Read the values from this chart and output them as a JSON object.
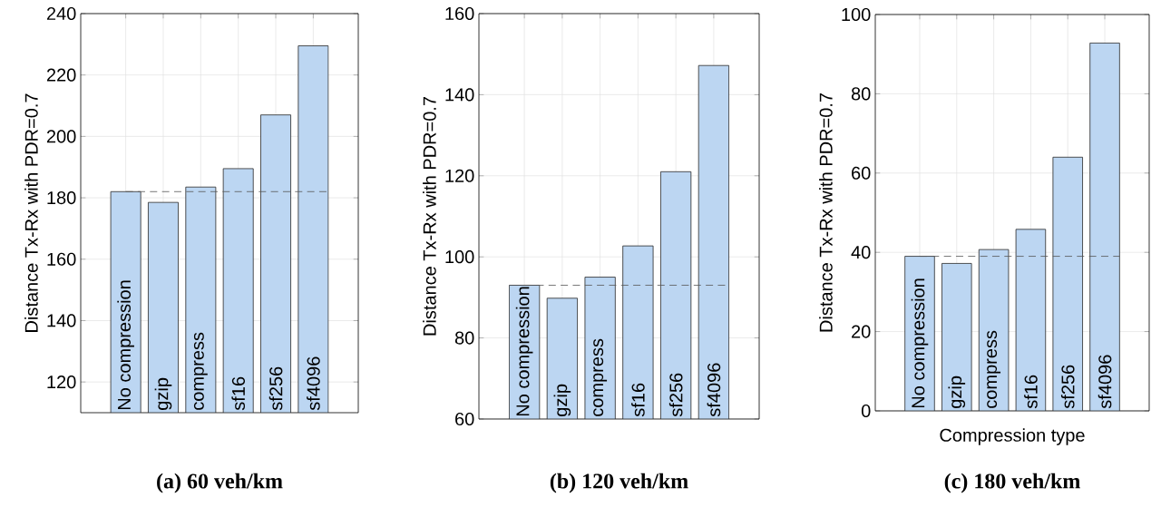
{
  "chart_data": [
    {
      "type": "bar",
      "title": "(a) 60 veh/km",
      "ylabel": "Distance Tx-Rx with PDR=0.7",
      "categories": [
        "No compression",
        "gzip",
        "compress",
        "sf16",
        "sf256",
        "sf4096"
      ],
      "values": [
        182,
        178.5,
        183.5,
        189.5,
        207,
        229.5
      ],
      "color": "#bcd6f2",
      "ylim": [
        110,
        240
      ],
      "yticks": [
        120,
        140,
        160,
        180,
        200,
        220,
        240
      ],
      "grid": true,
      "tick_labels": "y",
      "ref_lines": [
        {
          "axis": "y",
          "value": 182,
          "color": "#555555",
          "line_style": "dashed"
        }
      ]
    },
    {
      "type": "bar",
      "title": "(b) 120 veh/km",
      "ylabel": "Distance Tx-Rx with PDR=0.7",
      "categories": [
        "No compression",
        "gzip",
        "compress",
        "sf16",
        "sf256",
        "sf4096"
      ],
      "values": [
        93,
        89.8,
        95,
        102.7,
        121,
        147.2
      ],
      "color": "#bcd6f2",
      "ylim": [
        60,
        160
      ],
      "yticks": [
        60,
        80,
        100,
        120,
        140,
        160
      ],
      "grid": true,
      "tick_labels": "y",
      "ref_lines": [
        {
          "axis": "y",
          "value": 93,
          "color": "#555555",
          "line_style": "dashed"
        }
      ]
    },
    {
      "type": "bar",
      "title": "(c) 180 veh/km",
      "xlabel": "Compression type",
      "ylabel": "Distance Tx-Rx with PDR=0.7",
      "categories": [
        "No compression",
        "gzip",
        "compress",
        "sf16",
        "sf256",
        "sf4096"
      ],
      "values": [
        39,
        37.2,
        40.7,
        45.8,
        64,
        92.8
      ],
      "color": "#bcd6f2",
      "ylim": [
        0,
        100
      ],
      "yticks": [
        0,
        20,
        40,
        60,
        80,
        100
      ],
      "grid": true,
      "tick_labels": "y",
      "ref_lines": [
        {
          "axis": "y",
          "value": 39,
          "color": "#555555",
          "line_style": "dashed"
        }
      ]
    }
  ]
}
